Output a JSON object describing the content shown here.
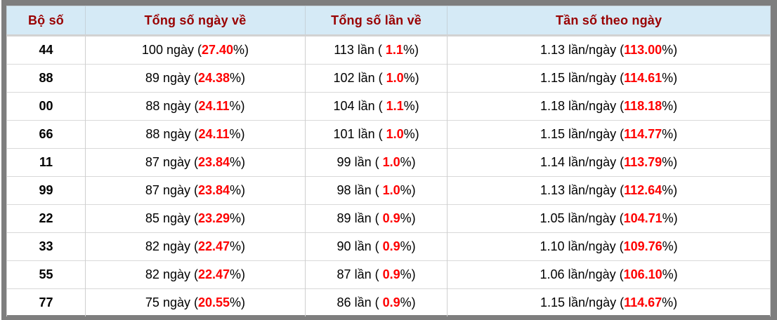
{
  "colors": {
    "frame_border": "#7e7e7e",
    "header_background": "#d5eaf6",
    "header_text": "#990000",
    "highlight_red": "#ff0000",
    "body_text": "#000000",
    "cell_border": "#cfcfcf"
  },
  "table": {
    "headers": [
      {
        "label": "Bộ số"
      },
      {
        "label": "Tổng số ngày về"
      },
      {
        "label": "Tổng số lần về"
      },
      {
        "label": "Tần số theo ngày"
      }
    ],
    "rows": [
      {
        "pair": "44",
        "days": {
          "pre": "100 ngày (",
          "pct": "27.40",
          "post": "%)"
        },
        "times": {
          "pre": "113 lần ( ",
          "pct": "1.1",
          "post": "%)"
        },
        "freq": {
          "pre": "1.13 lần/ngày (",
          "pct": "113.00",
          "post": "%)"
        }
      },
      {
        "pair": "88",
        "days": {
          "pre": "89 ngày (",
          "pct": "24.38",
          "post": "%)"
        },
        "times": {
          "pre": "102 lần ( ",
          "pct": "1.0",
          "post": "%)"
        },
        "freq": {
          "pre": "1.15 lần/ngày (",
          "pct": "114.61",
          "post": "%)"
        }
      },
      {
        "pair": "00",
        "days": {
          "pre": "88 ngày (",
          "pct": "24.11",
          "post": "%)"
        },
        "times": {
          "pre": "104 lần ( ",
          "pct": "1.1",
          "post": "%)"
        },
        "freq": {
          "pre": "1.18 lần/ngày (",
          "pct": "118.18",
          "post": "%)"
        }
      },
      {
        "pair": "66",
        "days": {
          "pre": "88 ngày (",
          "pct": "24.11",
          "post": "%)"
        },
        "times": {
          "pre": "101 lần ( ",
          "pct": "1.0",
          "post": "%)"
        },
        "freq": {
          "pre": "1.15 lần/ngày (",
          "pct": "114.77",
          "post": "%)"
        }
      },
      {
        "pair": "11",
        "days": {
          "pre": "87 ngày (",
          "pct": "23.84",
          "post": "%)"
        },
        "times": {
          "pre": "99 lần ( ",
          "pct": "1.0",
          "post": "%)"
        },
        "freq": {
          "pre": "1.14 lần/ngày (",
          "pct": "113.79",
          "post": "%)"
        }
      },
      {
        "pair": "99",
        "days": {
          "pre": "87 ngày (",
          "pct": "23.84",
          "post": "%)"
        },
        "times": {
          "pre": "98 lần ( ",
          "pct": "1.0",
          "post": "%)"
        },
        "freq": {
          "pre": "1.13 lần/ngày (",
          "pct": "112.64",
          "post": "%)"
        }
      },
      {
        "pair": "22",
        "days": {
          "pre": "85 ngày (",
          "pct": "23.29",
          "post": "%)"
        },
        "times": {
          "pre": "89 lần ( ",
          "pct": "0.9",
          "post": "%)"
        },
        "freq": {
          "pre": "1.05 lần/ngày (",
          "pct": "104.71",
          "post": "%)"
        }
      },
      {
        "pair": "33",
        "days": {
          "pre": "82 ngày (",
          "pct": "22.47",
          "post": "%)"
        },
        "times": {
          "pre": "90 lần ( ",
          "pct": "0.9",
          "post": "%)"
        },
        "freq": {
          "pre": "1.10 lần/ngày (",
          "pct": "109.76",
          "post": "%)"
        }
      },
      {
        "pair": "55",
        "days": {
          "pre": "82 ngày (",
          "pct": "22.47",
          "post": "%)"
        },
        "times": {
          "pre": "87 lần ( ",
          "pct": "0.9",
          "post": "%)"
        },
        "freq": {
          "pre": "1.06 lần/ngày (",
          "pct": "106.10",
          "post": "%)"
        }
      },
      {
        "pair": "77",
        "days": {
          "pre": "75 ngày (",
          "pct": "20.55",
          "post": "%)"
        },
        "times": {
          "pre": "86 lần ( ",
          "pct": "0.9",
          "post": "%)"
        },
        "freq": {
          "pre": "1.15 lần/ngày (",
          "pct": "114.67",
          "post": "%)"
        }
      }
    ]
  }
}
